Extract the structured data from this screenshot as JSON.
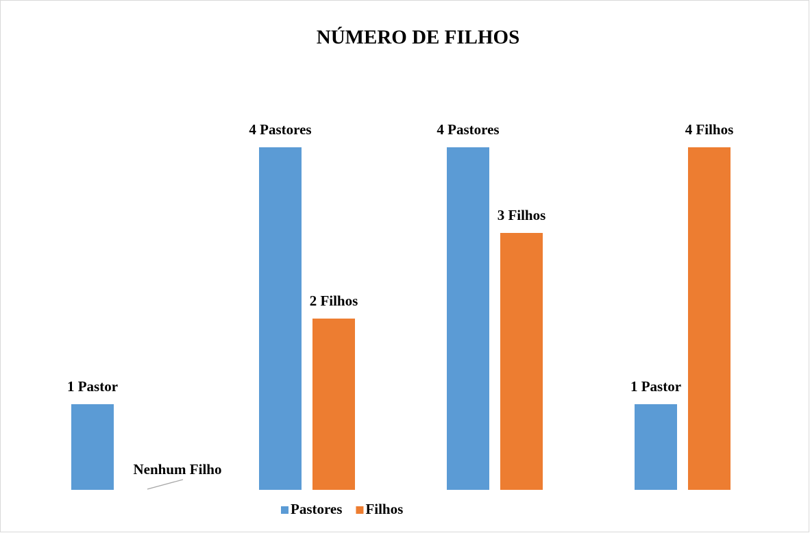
{
  "chart_data": {
    "type": "bar",
    "title": "NÚMERO DE FILHOS",
    "categories": [
      null,
      null,
      null,
      null
    ],
    "series": [
      {
        "name": "Pastores",
        "color": "#5b9bd5",
        "values": [
          1,
          4,
          4,
          1
        ],
        "value_labels": [
          "1 Pastor",
          "4 Pastores",
          "4 Pastores",
          "1 Pastor"
        ]
      },
      {
        "name": "Filhos",
        "color": "#ed7d31",
        "values": [
          0,
          2,
          3,
          4
        ],
        "value_labels": [
          "Nenhum Filho",
          "2 Filhos",
          "3 Filhos",
          "4 Filhos"
        ]
      }
    ],
    "ylim": [
      0,
      4
    ],
    "grid": false,
    "legend": "bottom"
  }
}
